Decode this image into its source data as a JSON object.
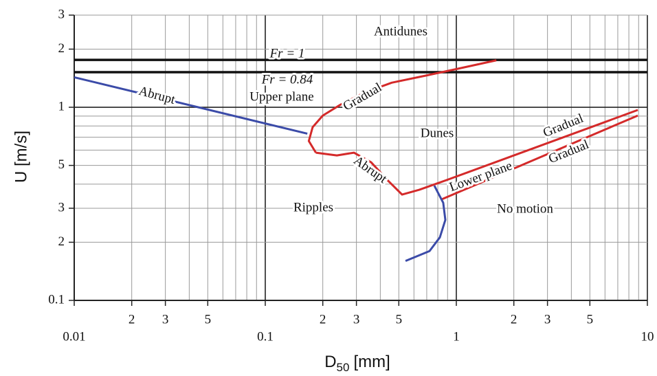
{
  "chart_data": {
    "type": "line",
    "x_label": {
      "base": "D",
      "sub": "50",
      "unit": "[mm]"
    },
    "y_label": "U [m/s]",
    "log_x": true,
    "log_y": true,
    "grid": true,
    "xlim": [
      0.01,
      10
    ],
    "ylim": [
      0.1,
      3
    ],
    "xticks": [
      0.01,
      {
        "value": 0.02,
        "label": "2"
      },
      {
        "value": 0.03,
        "label": "3"
      },
      {
        "value": 0.05,
        "label": "5"
      },
      0.1,
      {
        "value": 0.2,
        "label": "2"
      },
      {
        "value": 0.3,
        "label": "3"
      },
      {
        "value": 0.5,
        "label": "5"
      },
      1,
      {
        "value": 2,
        "label": "2"
      },
      {
        "value": 3,
        "label": "3"
      },
      {
        "value": 5,
        "label": "5"
      },
      10
    ],
    "yticks": [
      0.1,
      {
        "value": 0.2,
        "label": "2"
      },
      {
        "value": 0.3,
        "label": "3"
      },
      {
        "value": 0.5,
        "label": "5"
      },
      1,
      {
        "value": 2,
        "label": "2"
      },
      {
        "value": 3,
        "label": "3"
      }
    ],
    "xgrid": [
      0.01,
      0.02,
      0.03,
      0.04,
      0.05,
      0.06,
      0.07,
      0.08,
      0.09,
      0.1,
      0.2,
      0.3,
      0.4,
      0.5,
      0.6,
      0.7,
      0.8,
      0.9,
      1,
      2,
      3,
      4,
      5,
      6,
      7,
      8,
      9,
      10
    ],
    "ygrid": [
      0.1,
      0.2,
      0.3,
      0.4,
      0.5,
      0.6,
      0.7,
      0.8,
      0.9,
      1,
      2,
      3
    ],
    "hlines": [
      {
        "value": 1.76,
        "label": "Fr = 1"
      },
      {
        "value": 1.52,
        "label": "Fr = 0.84"
      }
    ],
    "series": [
      {
        "color": "#3b4ba8",
        "x": [
          0.01,
          0.166
        ],
        "values": [
          1.43,
          0.73
        ]
      },
      {
        "color": "#d42a2a",
        "x": [
          0.184,
          0.169,
          0.177,
          0.2,
          0.247,
          0.33,
          0.459,
          0.695,
          1.009,
          1.62
        ],
        "values": [
          0.582,
          0.669,
          0.789,
          0.906,
          1.03,
          1.19,
          1.34,
          1.46,
          1.58,
          1.75
        ]
      },
      {
        "color": "#d42a2a",
        "x": [
          0.184,
          0.237,
          0.291,
          0.358,
          0.44,
          0.52,
          0.64,
          0.891,
          8.91
        ],
        "values": [
          0.582,
          0.563,
          0.582,
          0.519,
          0.416,
          0.353,
          0.374,
          0.42,
          0.968
        ]
      },
      {
        "color": "#d42a2a",
        "x": [
          0.834,
          8.91
        ],
        "values": [
          0.333,
          0.906
        ]
      },
      {
        "color": "#3b4ba8",
        "x": [
          0.767,
          0.854,
          0.876,
          0.82,
          0.724,
          0.542
        ],
        "values": [
          0.393,
          0.32,
          0.261,
          0.212,
          0.18,
          0.16
        ]
      }
    ],
    "regions": [
      "Antidunes",
      "Upper plane",
      "Dunes",
      "Ripples",
      "No motion",
      "Lower plane"
    ],
    "curve_labels": [
      "Abrupt",
      "Gradual",
      "Abrupt",
      "Gradual",
      "Gradual"
    ]
  }
}
